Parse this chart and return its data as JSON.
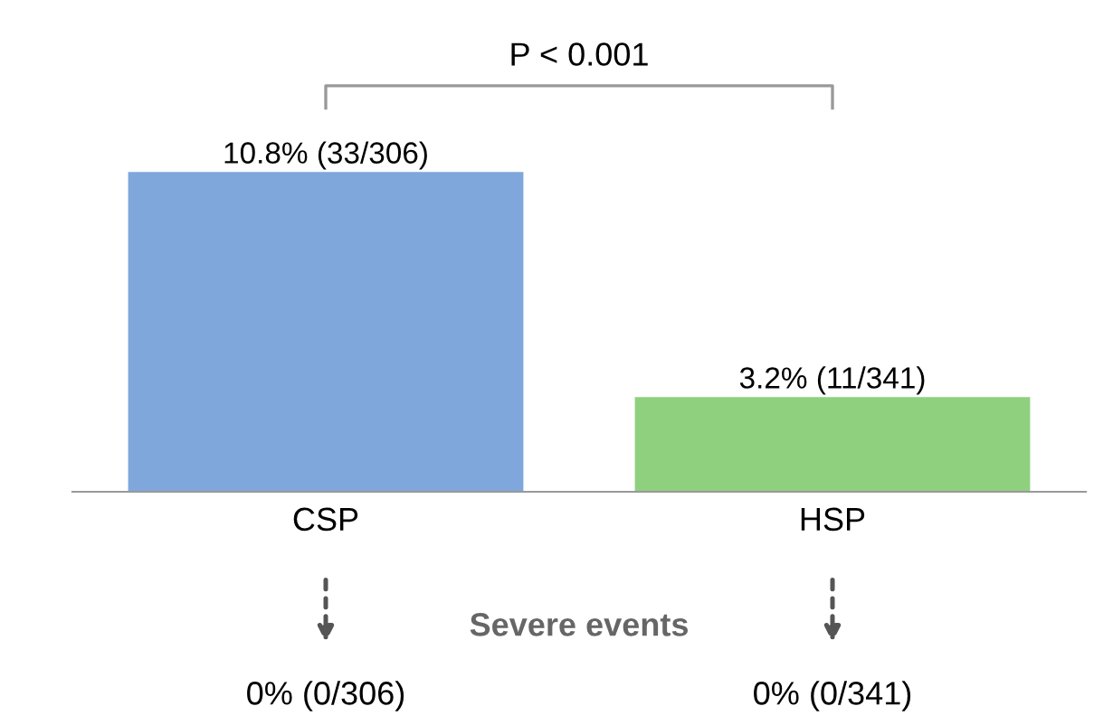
{
  "chart_data": {
    "type": "bar",
    "categories": [
      "CSP",
      "HSP"
    ],
    "values": [
      10.8,
      3.2
    ],
    "colors": [
      "#7fa7dc",
      "#8fd07f"
    ],
    "value_labels": [
      "10.8% (33/306)",
      "3.2% (11/341)"
    ],
    "annotations": [
      "P < 0.001",
      "Severe events",
      "0% (0/306)",
      "0% (0/341)"
    ],
    "grid": false,
    "legend": false
  }
}
